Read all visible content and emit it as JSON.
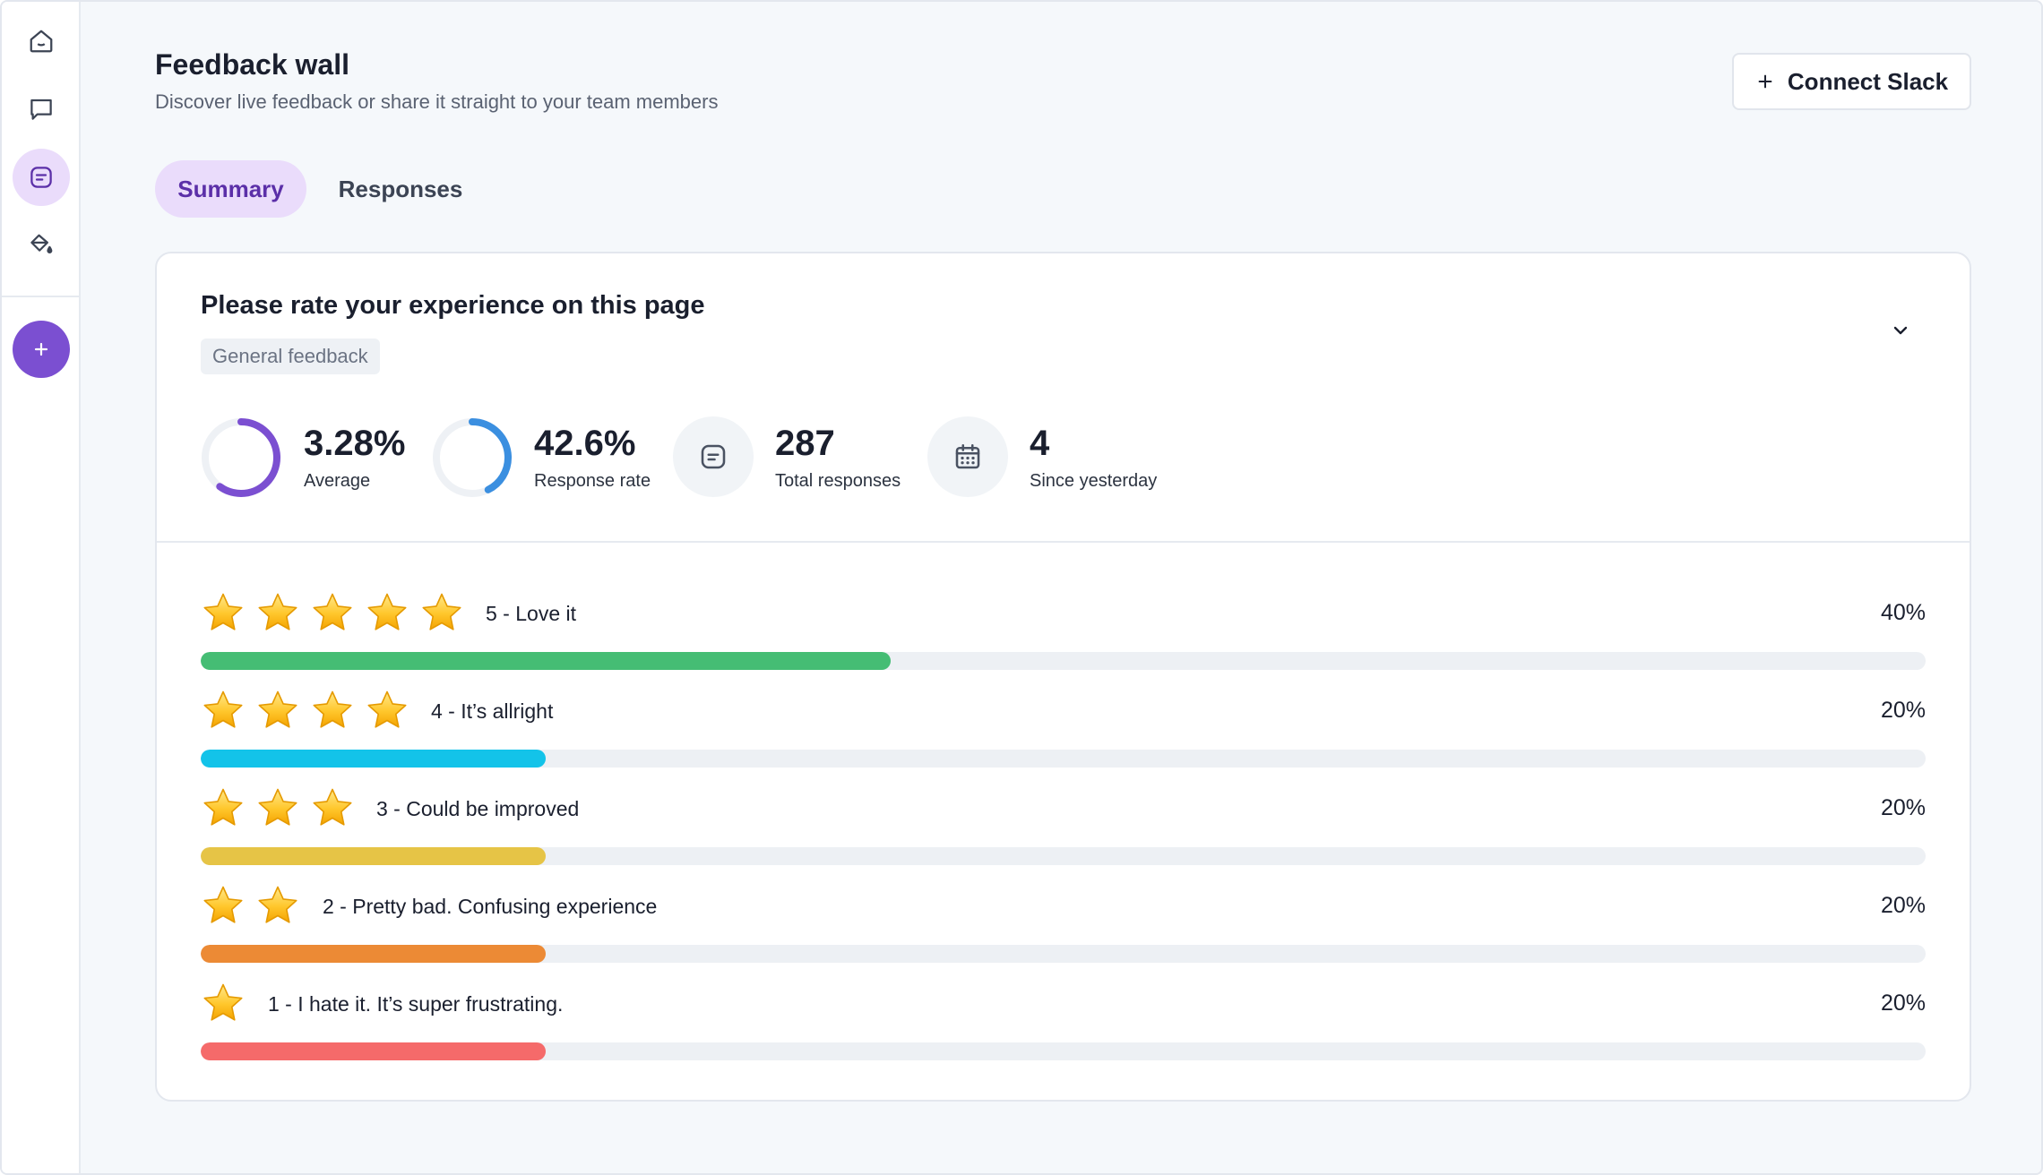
{
  "header": {
    "title": "Feedback wall",
    "subtitle": "Discover live feedback or share it straight to your team members",
    "connect_label": "Connect Slack"
  },
  "tabs": [
    {
      "label": "Summary",
      "active": true
    },
    {
      "label": "Responses",
      "active": false
    }
  ],
  "sidebar": {
    "items": [
      {
        "icon": "home-icon"
      },
      {
        "icon": "chat-icon"
      },
      {
        "icon": "feedback-icon",
        "active": true
      },
      {
        "icon": "paint-bucket-icon"
      }
    ],
    "add_icon": "plus-icon"
  },
  "card": {
    "question": "Please rate your experience on this page",
    "tag": "General feedback",
    "stats": [
      {
        "value": "3.28%",
        "label": "Average",
        "ring_fraction": 0.6,
        "ring_color": "#7b4fd1"
      },
      {
        "value": "42.6%",
        "label": "Response rate",
        "ring_fraction": 0.426,
        "ring_color": "#3b8fe0"
      },
      {
        "value": "287",
        "label": "Total responses",
        "icon": "message-icon"
      },
      {
        "value": "4",
        "label": "Since yesterday",
        "icon": "calendar-icon"
      }
    ]
  },
  "ratings": [
    {
      "stars": 5,
      "label": "5 - Love it",
      "pct_label": "40%",
      "pct": 40,
      "color": "#45bd74"
    },
    {
      "stars": 4,
      "label": "4 - It’s allright",
      "pct_label": "20%",
      "pct": 20,
      "color": "#13c3e9"
    },
    {
      "stars": 3,
      "label": "3 - Could be improved",
      "pct_label": "20%",
      "pct": 20,
      "color": "#e6c446"
    },
    {
      "stars": 2,
      "label": "2 - Pretty bad. Confusing experience",
      "pct_label": "20%",
      "pct": 20,
      "color": "#ec8a35"
    },
    {
      "stars": 1,
      "label": "1 - I hate it. It’s super frustrating.",
      "pct_label": "20%",
      "pct": 20,
      "color": "#f56a6a"
    }
  ]
}
